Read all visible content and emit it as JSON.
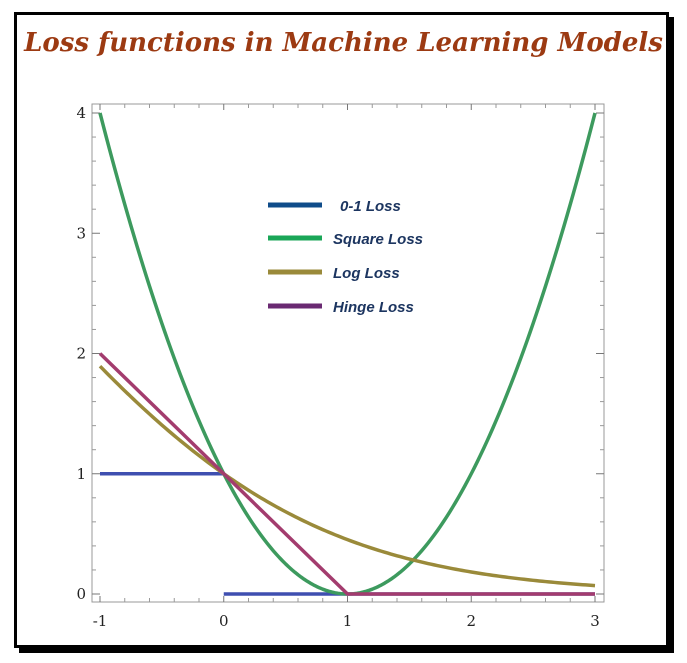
{
  "chart_data": {
    "type": "line",
    "title": "Loss functions in Machine Learning Models",
    "xlim": [
      -1,
      3
    ],
    "ylim": [
      0,
      4
    ],
    "x_ticks": [
      "-1",
      "0",
      "1",
      "2",
      "3"
    ],
    "y_ticks": [
      "0",
      "1",
      "2",
      "3",
      "4"
    ],
    "legend_position": "top-center",
    "series": [
      {
        "name": "0-1 Loss",
        "color": "#3f4fb0",
        "legend_color": "#0f4c8a",
        "segments": [
          [
            [
              -1,
              1
            ],
            [
              0,
              1
            ]
          ],
          [
            [
              0,
              0
            ],
            [
              3,
              0
            ]
          ]
        ]
      },
      {
        "name": "Square Loss",
        "color": "#3d9a5e",
        "legend_color": "#1aa657",
        "x": [
          -1,
          -0.75,
          -0.5,
          -0.25,
          0,
          0.25,
          0.5,
          0.75,
          1,
          1.25,
          1.5,
          1.75,
          2,
          2.25,
          2.5,
          2.75,
          3
        ],
        "y": [
          4,
          3.0625,
          2.25,
          1.5625,
          1,
          0.5625,
          0.25,
          0.0625,
          0,
          0.0625,
          0.25,
          0.5625,
          1,
          1.5625,
          2.25,
          3.0625,
          4
        ]
      },
      {
        "name": "Log Loss",
        "color": "#9a8a3a",
        "legend_color": "#9a8a3a",
        "x": [
          -1,
          -0.5,
          0,
          0.5,
          1,
          1.5,
          2,
          2.5,
          3
        ],
        "y": [
          1.89,
          1.4,
          1.0,
          0.68,
          0.45,
          0.29,
          0.18,
          0.11,
          0.07
        ]
      },
      {
        "name": "Hinge Loss",
        "color": "#a33c6e",
        "legend_color": "#6a2a72",
        "x": [
          -1,
          1,
          3
        ],
        "y": [
          2,
          0,
          0
        ]
      }
    ]
  }
}
